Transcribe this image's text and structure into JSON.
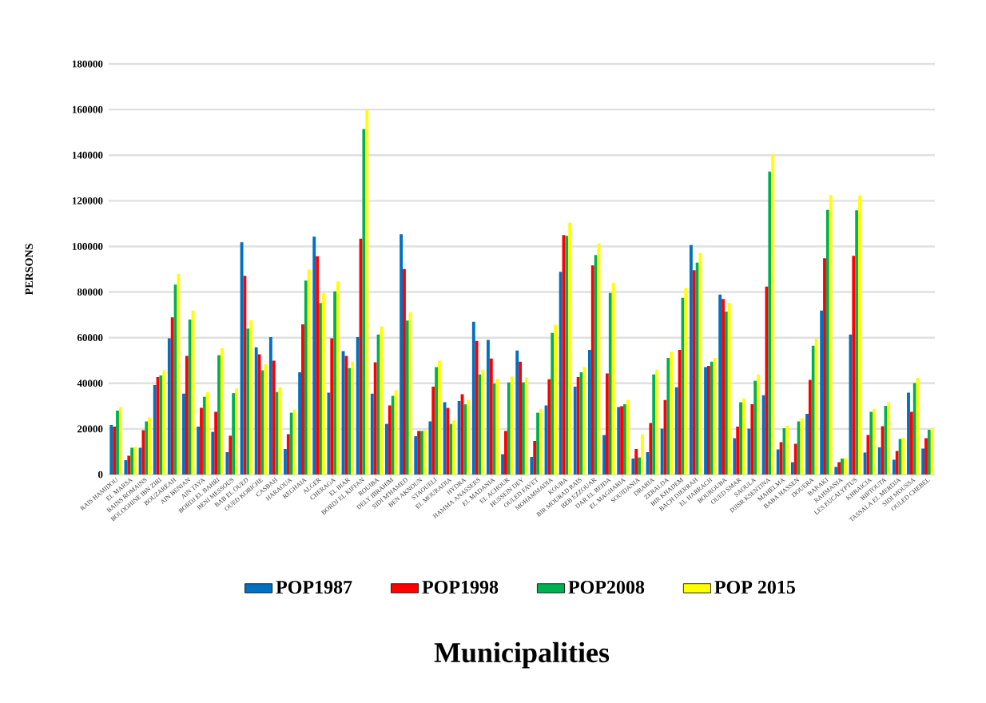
{
  "chart_data": {
    "type": "bar",
    "xlabel": "Municipalities",
    "ylabel": "PERSONS",
    "categories": [
      "RAIS HAMIDOU",
      "EL MARSA",
      "BAINS ROMAINS",
      "BOLOGHINE IBN ZIRI",
      "BOUZAREAH",
      "AIN BENIAN",
      "AIN TAYA",
      "BORDJ EL BAHRI",
      "BENI MESSOUS",
      "BAB EL OUED",
      "OUED KORICHE",
      "CASBAH",
      "HARAOUA",
      "REGHAIA",
      "ALGER",
      "CHERAGA",
      "EL BIAR",
      "BORDJ EL KIFFAN",
      "ROUIBA",
      "DELY IBRAHIM",
      "SIDI M'HAMED",
      "BEN AKNOUN",
      "STAOUELI",
      "EL MOURADIA",
      "HYDRA",
      "HAMMA ANASSERS",
      "EL MADANIA",
      "EL ACHOUR",
      "HUSSEIN DEY",
      "OULED FAYET",
      "MOHAMMADIA",
      "KOUBA",
      "BIR MOURAD RAIS",
      "BEB EZZOUAR",
      "DAR EL BEIDA",
      "EL MAGHARIA",
      "SOUIDANIA",
      "DRARIA",
      "ZERALDA",
      "BIR KHADEM",
      "BACH DJERRAH",
      "EL HARRACH",
      "BOUROUBA",
      "OUED SMAR",
      "SAOULA",
      "DJISR KSENTINA",
      "MAHELMA",
      "BABA HASSEN",
      "DOUERA",
      "BARAKI",
      "RAHMANIA",
      "LES EUCALYPTUS",
      "KHRAICIA",
      "BIRTOUTA",
      "TASSALA EL MERDJA",
      "SIDI MOUSSA",
      "OULED CHEBEL"
    ],
    "series": [
      {
        "name": "POP1987",
        "color": "#0070c0",
        "values": [
          21700,
          6300,
          11700,
          39200,
          59700,
          35500,
          21000,
          18700,
          9800,
          101800,
          55800,
          60200,
          11200,
          44800,
          104300,
          35900,
          54100,
          60200,
          35500,
          22200,
          105300,
          16800,
          23300,
          31700,
          32200,
          67000,
          59000,
          8900,
          54400,
          7700,
          30300,
          88900,
          38500,
          54600,
          17300,
          29600,
          7000,
          9800,
          20100,
          38300,
          100600,
          47100,
          78900,
          15900,
          20100,
          34800,
          11000,
          5400,
          26600,
          71900,
          3300,
          61400,
          9600,
          11900,
          6500,
          35900,
          11400
        ]
      },
      {
        "name": "POP1998",
        "color": "#ff0000",
        "values": [
          21000,
          8200,
          19400,
          42700,
          68900,
          52000,
          29200,
          27500,
          17000,
          87100,
          52700,
          49900,
          17700,
          65800,
          95700,
          59700,
          52000,
          103400,
          49200,
          30300,
          90100,
          19100,
          38500,
          29200,
          35200,
          58600,
          50900,
          19100,
          49500,
          14700,
          41800,
          105000,
          42700,
          91700,
          44300,
          29900,
          11200,
          22600,
          32700,
          54600,
          89600,
          47600,
          77000,
          21000,
          30800,
          82400,
          14200,
          13500,
          41500,
          94800,
          5400,
          95900,
          17300,
          21200,
          10300,
          27500,
          15900
        ]
      },
      {
        "name": "POP2008",
        "color": "#00b050",
        "values": [
          28000,
          11700,
          23300,
          43400,
          83300,
          67900,
          34100,
          52300,
          35700,
          64000,
          45700,
          36200,
          27100,
          85000,
          75200,
          80300,
          46700,
          151500,
          61400,
          34500,
          67500,
          19100,
          47100,
          22200,
          30800,
          43900,
          39900,
          40400,
          40400,
          27100,
          62100,
          104600,
          44800,
          96200,
          79600,
          30800,
          7500,
          43900,
          51100,
          77500,
          92900,
          49500,
          71400,
          31700,
          41100,
          132800,
          20300,
          23300,
          56500,
          116000,
          7000,
          115800,
          27500,
          30100,
          15600,
          40100,
          19600
        ]
      },
      {
        "name": "POP 2015",
        "color": "#ffff00",
        "values": [
          29600,
          12100,
          25000,
          45700,
          88000,
          71900,
          36000,
          55300,
          37800,
          67700,
          48300,
          38300,
          28500,
          89900,
          79400,
          84700,
          49500,
          159900,
          64900,
          36900,
          71200,
          19600,
          49900,
          23800,
          32700,
          46000,
          42000,
          42900,
          42500,
          28700,
          65600,
          110400,
          47100,
          101300,
          84000,
          32700,
          17700,
          46000,
          53800,
          81700,
          97100,
          51100,
          75200,
          33400,
          43900,
          140500,
          21500,
          24700,
          59500,
          122500,
          7200,
          122300,
          28900,
          31700,
          16100,
          42500,
          20500
        ]
      }
    ],
    "ylim": [
      0,
      180000
    ],
    "yticks": [
      0,
      20000,
      40000,
      60000,
      80000,
      100000,
      120000,
      140000,
      160000,
      180000
    ],
    "grid": "y",
    "legend": "bottom"
  }
}
